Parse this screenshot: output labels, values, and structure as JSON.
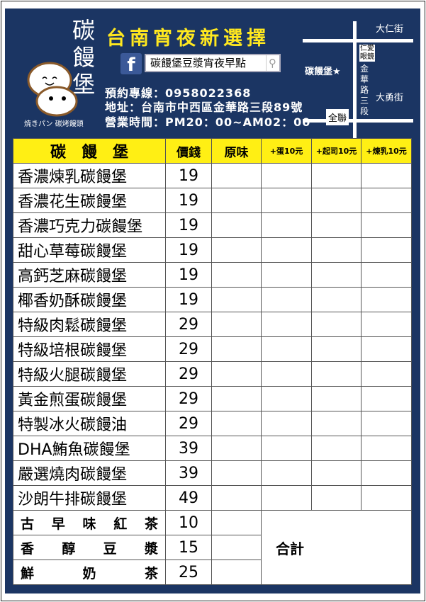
{
  "brand": {
    "name_chars": [
      "碳",
      "饅",
      "堡"
    ],
    "tagline": "焼きパン 碳烤饅頭",
    "slogan": "台南宵夜新選擇"
  },
  "facebook": {
    "icon": "facebook-icon",
    "page_name": "碳饅堡豆漿宵夜早點",
    "search_icon": "search-icon"
  },
  "contact": {
    "phone": "預約專線：0958022368",
    "address": "地址：台南市中西區金華路三段89號",
    "hours": "營業時間：PM20：00~AM02：00"
  },
  "map": {
    "street_top": "大仁街",
    "street_bottom": "大勇街",
    "road_vertical": "金華路三段",
    "landmark_shop": "仁愛眼鏡",
    "landmark_store": "全聯",
    "shop_marker": "碳饅堡★",
    "star_color": "#ffe81f"
  },
  "colors": {
    "panel": "#1b3563",
    "header": "#ffef14",
    "slogan": "#ffe81f"
  },
  "table": {
    "headers": [
      "碳　饅　堡",
      "價錢",
      "原味",
      "+蛋10元",
      "+起司10元",
      "+煉乳10元"
    ],
    "items": [
      {
        "name": "香濃煉乳碳饅堡",
        "price": "19"
      },
      {
        "name": "香濃花生碳饅堡",
        "price": "19"
      },
      {
        "name": "香濃巧克力碳饅堡",
        "price": "19"
      },
      {
        "name": "甜心草莓碳饅堡",
        "price": "19"
      },
      {
        "name": "高鈣芝麻碳饅堡",
        "price": "19"
      },
      {
        "name": "椰香奶酥碳饅堡",
        "price": "19"
      },
      {
        "name": "特級肉鬆碳饅堡",
        "price": "29"
      },
      {
        "name": "特級培根碳饅堡",
        "price": "29"
      },
      {
        "name": "特級火腿碳饅堡",
        "price": "29"
      },
      {
        "name": "黃金煎蛋碳饅堡",
        "price": "29"
      },
      {
        "name": "特製冰火碳饅油",
        "price": "29"
      },
      {
        "name": "DHA鮪魚碳饅堡",
        "price": "39"
      },
      {
        "name": "嚴選燒肉碳饅堡",
        "price": "39"
      },
      {
        "name": "沙朗牛排碳饅堡",
        "price": "49"
      }
    ],
    "drinks": [
      {
        "name": "古早味紅茶",
        "price": "10"
      },
      {
        "name": "香醇豆漿",
        "price": "15"
      },
      {
        "name": "鮮奶茶",
        "price": "25"
      }
    ],
    "total_label": "合計"
  }
}
